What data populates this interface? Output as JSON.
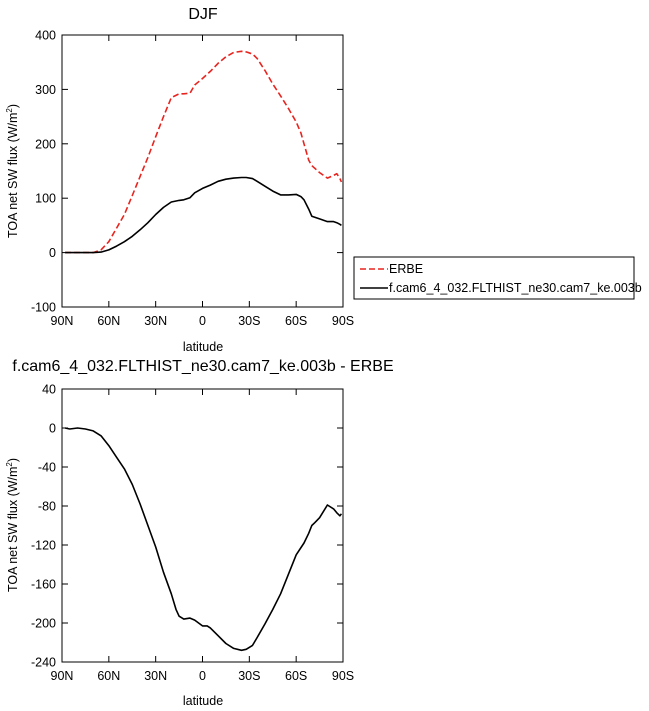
{
  "colors": {
    "erbe": "#e8241f",
    "model": "#000000"
  },
  "chart_data": [
    {
      "type": "line",
      "title": "DJF",
      "xlabel": "latitude",
      "ylabel": "TOA net SW flux (W/m²)",
      "ylabel_main": "TOA net SW flux (W/m",
      "ylabel_sup": "2",
      "ylabel_end": ")",
      "xlim": [
        -90,
        90
      ],
      "ylim": [
        -100,
        400
      ],
      "xticks": [
        {
          "v": -90,
          "label": "90N"
        },
        {
          "v": -60,
          "label": "60N"
        },
        {
          "v": -30,
          "label": "30N"
        },
        {
          "v": 0,
          "label": "0"
        },
        {
          "v": 30,
          "label": "30S"
        },
        {
          "v": 60,
          "label": "60S"
        },
        {
          "v": 90,
          "label": "90S"
        }
      ],
      "yticks": [
        {
          "v": -100,
          "label": "-100"
        },
        {
          "v": 0,
          "label": "0"
        },
        {
          "v": 100,
          "label": "100"
        },
        {
          "v": 200,
          "label": "200"
        },
        {
          "v": 300,
          "label": "300"
        },
        {
          "v": 400,
          "label": "400"
        }
      ],
      "legend_position": "right",
      "series": [
        {
          "name": "ERBE",
          "style": "dashed",
          "color_key": "erbe",
          "x": [
            -88,
            -80,
            -75,
            -70,
            -65,
            -60,
            -55,
            -50,
            -45,
            -40,
            -35,
            -30,
            -25,
            -20,
            -15,
            -12,
            -8,
            -5,
            0,
            5,
            10,
            15,
            20,
            25,
            28,
            32,
            35,
            40,
            45,
            50,
            55,
            60,
            63,
            65,
            68,
            70,
            75,
            80,
            84,
            86,
            88,
            89
          ],
          "y": [
            0,
            0,
            0,
            0,
            5,
            20,
            45,
            70,
            105,
            140,
            175,
            213,
            250,
            285,
            292,
            292,
            293,
            308,
            320,
            333,
            348,
            360,
            368,
            370,
            369,
            365,
            357,
            335,
            310,
            288,
            265,
            240,
            220,
            200,
            170,
            160,
            147,
            137,
            142,
            145,
            136,
            130
          ]
        },
        {
          "name": "f.cam6_4_032.FLTHIST_ne30.cam7_ke.003b",
          "style": "solid",
          "color_key": "model",
          "x": [
            -88,
            -80,
            -75,
            -70,
            -65,
            -60,
            -55,
            -50,
            -45,
            -40,
            -35,
            -30,
            -25,
            -20,
            -15,
            -12,
            -8,
            -5,
            0,
            5,
            10,
            15,
            20,
            25,
            28,
            32,
            35,
            40,
            45,
            50,
            55,
            60,
            63,
            65,
            68,
            70,
            75,
            80,
            84,
            86,
            88,
            89
          ],
          "y": [
            0,
            0,
            0,
            0,
            1,
            5,
            12,
            20,
            30,
            42,
            55,
            70,
            83,
            93,
            96,
            97,
            101,
            110,
            118,
            124,
            131,
            135,
            137,
            138,
            138,
            136,
            131,
            122,
            113,
            106,
            106,
            107,
            103,
            97,
            80,
            67,
            62,
            57,
            57,
            55,
            52,
            50
          ]
        }
      ]
    },
    {
      "type": "line",
      "title": "f.cam6_4_032.FLTHIST_ne30.cam7_ke.003b - ERBE",
      "xlabel": "latitude",
      "ylabel": "TOA net SW flux (W/m²)",
      "ylabel_main": "TOA net SW flux (W/m",
      "ylabel_sup": "2",
      "ylabel_end": ")",
      "xlim": [
        -90,
        90
      ],
      "ylim": [
        -240,
        40
      ],
      "xticks": [
        {
          "v": -90,
          "label": "90N"
        },
        {
          "v": -60,
          "label": "60N"
        },
        {
          "v": -30,
          "label": "30N"
        },
        {
          "v": 0,
          "label": "0"
        },
        {
          "v": 30,
          "label": "30S"
        },
        {
          "v": 60,
          "label": "60S"
        },
        {
          "v": 90,
          "label": "90S"
        }
      ],
      "yticks": [
        {
          "v": -240,
          "label": "-240"
        },
        {
          "v": -200,
          "label": "-200"
        },
        {
          "v": -160,
          "label": "-160"
        },
        {
          "v": -120,
          "label": "-120"
        },
        {
          "v": -80,
          "label": "-80"
        },
        {
          "v": -40,
          "label": "-40"
        },
        {
          "v": 0,
          "label": "0"
        },
        {
          "v": 40,
          "label": "40"
        }
      ],
      "series": [
        {
          "style": "solid",
          "color_key": "model",
          "x": [
            -88,
            -85,
            -80,
            -75,
            -70,
            -65,
            -60,
            -55,
            -50,
            -45,
            -40,
            -35,
            -30,
            -25,
            -20,
            -17,
            -15,
            -12,
            -8,
            -5,
            0,
            3,
            5,
            10,
            15,
            20,
            25,
            28,
            32,
            35,
            40,
            45,
            50,
            55,
            60,
            65,
            68,
            70,
            72,
            75,
            80,
            84,
            86,
            88,
            89
          ],
          "y": [
            0,
            -1,
            0,
            -1,
            -3,
            -8,
            -18,
            -30,
            -42,
            -58,
            -78,
            -100,
            -122,
            -148,
            -170,
            -186,
            -193,
            -196,
            -195,
            -197,
            -203,
            -203,
            -205,
            -213,
            -221,
            -226,
            -228,
            -227,
            -223,
            -215,
            -201,
            -186,
            -170,
            -150,
            -130,
            -118,
            -108,
            -100,
            -97,
            -92,
            -79,
            -83,
            -87,
            -90,
            -88
          ]
        }
      ]
    }
  ]
}
